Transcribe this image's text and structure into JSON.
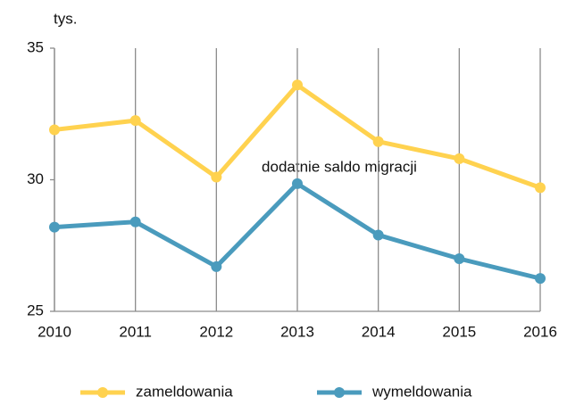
{
  "chart_data": {
    "type": "line",
    "y_label": "tys.",
    "annotation": "dodatnie saldo migracji",
    "categories": [
      "2010",
      "2011",
      "2012",
      "2013",
      "2014",
      "2015",
      "2016"
    ],
    "series": [
      {
        "name": "zameldowania",
        "color": "#ffd24f",
        "values": [
          31.9,
          32.25,
          30.1,
          33.6,
          31.45,
          30.8,
          29.7
        ]
      },
      {
        "name": "wymeldowania",
        "color": "#4a9bbd",
        "values": [
          28.2,
          28.4,
          26.7,
          29.85,
          27.9,
          27.0,
          26.25
        ]
      }
    ],
    "ylim": [
      25,
      35
    ],
    "yticks": [
      25,
      30,
      35
    ],
    "grid": "x",
    "legend": "bottom"
  }
}
